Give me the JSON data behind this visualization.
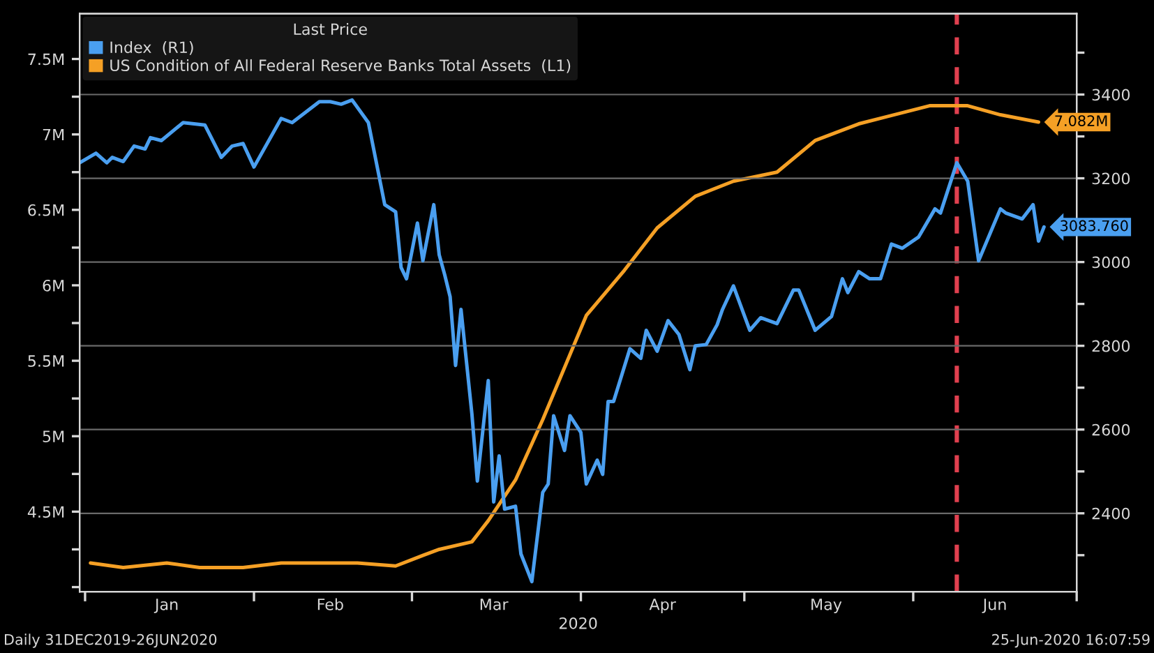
{
  "chart_data": {
    "type": "line",
    "legend_title": "Last Price",
    "xlabel": "2020",
    "annotations": [
      "Daily 31DEC2019-26JUN2020",
      "25-Jun-2020 16:07:59"
    ],
    "xlim": [
      "2019-12-31",
      "2020-07-01"
    ],
    "xticks": [
      {
        "value": "2020-01-01",
        "label": null
      },
      {
        "value": "2020-01-16",
        "label": "Jan"
      },
      {
        "value": "2020-02-01",
        "label": null
      },
      {
        "value": "2020-02-15",
        "label": "Feb"
      },
      {
        "value": "2020-03-01",
        "label": null
      },
      {
        "value": "2020-03-16",
        "label": "Mar"
      },
      {
        "value": "2020-04-01",
        "label": null
      },
      {
        "value": "2020-04-16",
        "label": "Apr"
      },
      {
        "value": "2020-05-01",
        "label": null
      },
      {
        "value": "2020-05-16",
        "label": "May"
      },
      {
        "value": "2020-06-01",
        "label": null
      },
      {
        "value": "2020-06-16",
        "label": "Jun"
      },
      {
        "value": "2020-07-01",
        "label": null
      }
    ],
    "ylim": [
      3.97,
      7.8
    ],
    "yticks": [
      {
        "value": 4.0,
        "label": null
      },
      {
        "value": 4.25,
        "label": null
      },
      {
        "value": 4.5,
        "label": "4.5M"
      },
      {
        "value": 4.75,
        "label": null
      },
      {
        "value": 5.0,
        "label": "5M"
      },
      {
        "value": 5.25,
        "label": null
      },
      {
        "value": 5.5,
        "label": "5.5M"
      },
      {
        "value": 5.75,
        "label": null
      },
      {
        "value": 6.0,
        "label": "6M"
      },
      {
        "value": 6.25,
        "label": null
      },
      {
        "value": 6.5,
        "label": "6.5M"
      },
      {
        "value": 6.75,
        "label": null
      },
      {
        "value": 7.0,
        "label": "7M"
      },
      {
        "value": 7.25,
        "label": null
      },
      {
        "value": 7.5,
        "label": "7.5M"
      }
    ],
    "y2lim": [
      2213,
      3593
    ],
    "y2ticks": [
      {
        "value": 2300,
        "label": null
      },
      2400,
      {
        "value": 2500,
        "label": null
      },
      2600,
      {
        "value": 2700,
        "label": null
      },
      2800,
      {
        "value": 2900,
        "label": null
      },
      3000,
      {
        "value": 3100,
        "label": null
      },
      3200,
      {
        "value": 3300,
        "label": null
      },
      3400,
      {
        "value": 3500,
        "label": null
      }
    ],
    "grid": "y",
    "legend": "top left",
    "line_style": "solid",
    "ref_lines": [
      {
        "axis": "x",
        "value": "2020-06-09",
        "color": "#e0404f",
        "line_style": "dashed"
      }
    ],
    "series": [
      {
        "name": "Index  (R1)",
        "color": "#4a9ff0",
        "axis": "y2",
        "x": [
          "2019-12-31",
          "2020-01-03",
          "2020-01-05",
          "2020-01-06",
          "2020-01-08",
          "2020-01-10",
          "2020-01-12",
          "2020-01-13",
          "2020-01-15",
          "2020-01-19",
          "2020-01-23",
          "2020-01-26",
          "2020-01-28",
          "2020-01-30",
          "2020-02-01",
          "2020-02-06",
          "2020-02-08",
          "2020-02-13",
          "2020-02-15",
          "2020-02-17",
          "2020-02-19",
          "2020-02-22",
          "2020-02-25",
          "2020-02-27",
          "2020-02-28",
          "2020-02-29",
          "2020-03-02",
          "2020-03-03",
          "2020-03-05",
          "2020-03-06",
          "2020-03-07",
          "2020-03-08",
          "2020-03-09",
          "2020-03-10",
          "2020-03-12",
          "2020-03-13",
          "2020-03-15",
          "2020-03-16",
          "2020-03-17",
          "2020-03-18",
          "2020-03-20",
          "2020-03-21",
          "2020-03-23",
          "2020-03-25",
          "2020-03-26",
          "2020-03-27",
          "2020-03-29",
          "2020-03-30",
          "2020-04-01",
          "2020-04-02",
          "2020-04-04",
          "2020-04-05",
          "2020-04-06",
          "2020-04-07",
          "2020-04-10",
          "2020-04-12",
          "2020-04-13",
          "2020-04-15",
          "2020-04-17",
          "2020-04-19",
          "2020-04-21",
          "2020-04-22",
          "2020-04-24",
          "2020-04-26",
          "2020-04-27",
          "2020-04-29",
          "2020-05-02",
          "2020-05-04",
          "2020-05-07",
          "2020-05-10",
          "2020-05-11",
          "2020-05-14",
          "2020-05-17",
          "2020-05-19",
          "2020-05-20",
          "2020-05-22",
          "2020-05-24",
          "2020-05-26",
          "2020-05-28",
          "2020-05-30",
          "2020-06-02",
          "2020-06-05",
          "2020-06-06",
          "2020-06-09",
          "2020-06-11",
          "2020-06-13",
          "2020-06-17",
          "2020-06-18",
          "2020-06-21",
          "2020-06-23",
          "2020-06-24",
          "2020-06-25"
        ],
        "values": [
          3237,
          3260,
          3237,
          3250,
          3240,
          3277,
          3270,
          3297,
          3290,
          3333,
          3327,
          3250,
          3277,
          3283,
          3227,
          3343,
          3333,
          3383,
          3383,
          3377,
          3387,
          3333,
          3137,
          3120,
          2987,
          2960,
          3093,
          3003,
          3137,
          3017,
          2970,
          2917,
          2753,
          2887,
          2637,
          2477,
          2717,
          2427,
          2537,
          2410,
          2417,
          2303,
          2237,
          2450,
          2470,
          2633,
          2550,
          2633,
          2593,
          2470,
          2527,
          2493,
          2667,
          2667,
          2793,
          2770,
          2837,
          2787,
          2860,
          2827,
          2743,
          2800,
          2803,
          2850,
          2887,
          2943,
          2837,
          2867,
          2853,
          2933,
          2933,
          2837,
          2870,
          2960,
          2927,
          2977,
          2960,
          2960,
          3043,
          3033,
          3060,
          3127,
          3117,
          3237,
          3193,
          3003,
          3127,
          3117,
          3103,
          3137,
          3050,
          3083.76
        ],
        "value_labels": [
          null,
          null,
          null,
          null,
          null,
          null,
          null,
          null,
          null,
          null,
          null,
          null,
          null,
          null,
          null,
          null,
          null,
          null,
          null,
          null,
          null,
          null,
          null,
          null,
          null,
          null,
          null,
          null,
          null,
          null,
          null,
          null,
          null,
          null,
          null,
          null,
          null,
          null,
          null,
          null,
          null,
          null,
          null,
          null,
          null,
          null,
          null,
          null,
          null,
          null,
          null,
          null,
          null,
          null,
          null,
          null,
          null,
          null,
          null,
          null,
          null,
          null,
          null,
          null,
          null,
          null,
          null,
          null,
          null,
          null,
          null,
          null,
          null,
          null,
          null,
          null,
          null,
          null,
          null,
          null,
          null,
          null,
          null,
          null,
          null,
          null,
          null,
          null,
          null,
          null,
          null,
          "3083.760"
        ]
      },
      {
        "name": "US Condition of All Federal Reserve Banks Total Assets  (L1)",
        "color": "#f5a025",
        "axis": "y",
        "x": [
          "2020-01-02",
          "2020-01-08",
          "2020-01-16",
          "2020-01-22",
          "2020-01-30",
          "2020-02-06",
          "2020-02-13",
          "2020-02-20",
          "2020-02-27",
          "2020-03-03",
          "2020-03-06",
          "2020-03-12",
          "2020-03-15",
          "2020-03-20",
          "2020-03-25",
          "2020-04-02",
          "2020-04-09",
          "2020-04-15",
          "2020-04-22",
          "2020-04-29",
          "2020-05-07",
          "2020-05-14",
          "2020-05-22",
          "2020-06-04",
          "2020-06-11",
          "2020-06-17",
          "2020-06-24"
        ],
        "values": [
          4.16,
          4.13,
          4.16,
          4.13,
          4.13,
          4.16,
          4.16,
          4.16,
          4.14,
          4.21,
          4.25,
          4.3,
          4.44,
          4.71,
          5.11,
          5.8,
          6.1,
          6.38,
          6.59,
          6.69,
          6.75,
          6.96,
          7.07,
          7.19,
          7.19,
          7.13,
          7.082
        ],
        "value_labels": [
          null,
          null,
          null,
          null,
          null,
          null,
          null,
          null,
          null,
          null,
          null,
          null,
          null,
          null,
          null,
          null,
          null,
          null,
          null,
          null,
          null,
          null,
          null,
          null,
          null,
          null,
          "7.082M"
        ]
      }
    ]
  }
}
